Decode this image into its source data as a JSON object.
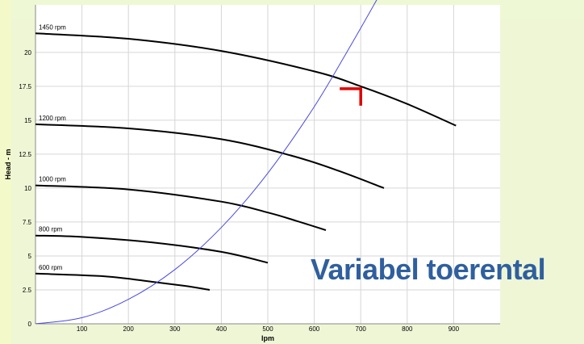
{
  "slide": {
    "overlay_text": "Variabel toerental",
    "overlay_color": "#2f5f9e",
    "marker_color": "#e00000"
  },
  "chart_data": {
    "type": "line",
    "title": "",
    "xlabel": "lpm",
    "ylabel": "Head - m",
    "xlim": [
      0,
      1000
    ],
    "ylim": [
      0,
      23.5
    ],
    "x_ticks": [
      100,
      200,
      300,
      400,
      500,
      600,
      700,
      800,
      900
    ],
    "y_ticks": [
      0,
      2.5,
      5,
      7.5,
      10,
      12.5,
      15,
      17.5,
      20
    ],
    "grid": true,
    "series": [
      {
        "name": "1450 rpm",
        "color": "#000000",
        "points": [
          [
            0,
            21.4
          ],
          [
            200,
            21.0
          ],
          [
            400,
            20.1
          ],
          [
            600,
            18.6
          ],
          [
            700,
            17.5
          ],
          [
            800,
            16.2
          ],
          [
            905,
            14.6
          ]
        ]
      },
      {
        "name": "1200 rpm",
        "color": "#000000",
        "points": [
          [
            0,
            14.7
          ],
          [
            200,
            14.4
          ],
          [
            400,
            13.6
          ],
          [
            550,
            12.4
          ],
          [
            650,
            11.3
          ],
          [
            750,
            10.0
          ]
        ]
      },
      {
        "name": "1000 rpm",
        "color": "#000000",
        "points": [
          [
            0,
            10.2
          ],
          [
            200,
            9.9
          ],
          [
            400,
            9.0
          ],
          [
            500,
            8.2
          ],
          [
            560,
            7.6
          ],
          [
            625,
            6.9
          ]
        ]
      },
      {
        "name": "800 rpm",
        "color": "#000000",
        "points": [
          [
            0,
            6.5
          ],
          [
            100,
            6.4
          ],
          [
            250,
            6.0
          ],
          [
            400,
            5.3
          ],
          [
            500,
            4.5
          ]
        ]
      },
      {
        "name": "600 rpm",
        "color": "#000000",
        "points": [
          [
            0,
            3.7
          ],
          [
            150,
            3.5
          ],
          [
            250,
            3.1
          ],
          [
            320,
            2.8
          ],
          [
            375,
            2.5
          ]
        ]
      },
      {
        "name": "",
        "color": "#4a4ae0",
        "points": [
          [
            0,
            0
          ],
          [
            100,
            0.45
          ],
          [
            200,
            1.8
          ],
          [
            300,
            4.0
          ],
          [
            400,
            7.1
          ],
          [
            500,
            11.1
          ],
          [
            600,
            16.0
          ],
          [
            680,
            20.6
          ],
          [
            740,
            24.2
          ]
        ]
      }
    ],
    "marker": {
      "x": 700,
      "y": 17.5
    }
  }
}
